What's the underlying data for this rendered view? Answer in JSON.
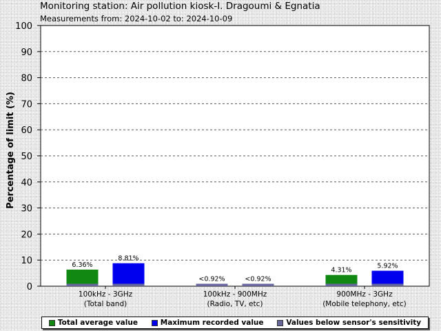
{
  "header": {
    "title": "Monitoring station: Air pollution kiosk-I. Dragoumi & Egnatia",
    "subtitle": "Measurements from: 2024-10-02 to: 2024-10-09"
  },
  "colors": {
    "average": "#118811",
    "maximum": "#0000ee",
    "below": "#66669a"
  },
  "chart_data": {
    "type": "bar",
    "ylabel": "Percentage of limit (%)",
    "ylim": [
      0,
      100
    ],
    "yticks": [
      0,
      10,
      20,
      30,
      40,
      50,
      60,
      70,
      80,
      90,
      100
    ],
    "grid": true,
    "legend_position": "bottom",
    "categories": [
      {
        "line1": "100kHz - 3GHz",
        "line2": "(Total band)"
      },
      {
        "line1": "100kHz - 900MHz",
        "line2": "(Radio, TV, etc)"
      },
      {
        "line1": "900MHz - 3GHz",
        "line2": "(Mobile telephony, etc)"
      }
    ],
    "series": [
      {
        "name": "Total average value",
        "values": [
          6.36,
          0.92,
          4.31
        ],
        "labels": [
          "6.36%",
          "<0.92%",
          "4.31%"
        ],
        "below_sensitivity": [
          false,
          true,
          false
        ]
      },
      {
        "name": "Maximum recorded value",
        "values": [
          8.81,
          0.92,
          5.92
        ],
        "labels": [
          "8.81%",
          "<0.92%",
          "5.92%"
        ],
        "below_sensitivity": [
          false,
          true,
          false
        ]
      }
    ],
    "sensitivity_threshold": 0.92,
    "legend": [
      "Total average value",
      "Maximum recorded value",
      "Values below sensor's sensitivity"
    ]
  }
}
